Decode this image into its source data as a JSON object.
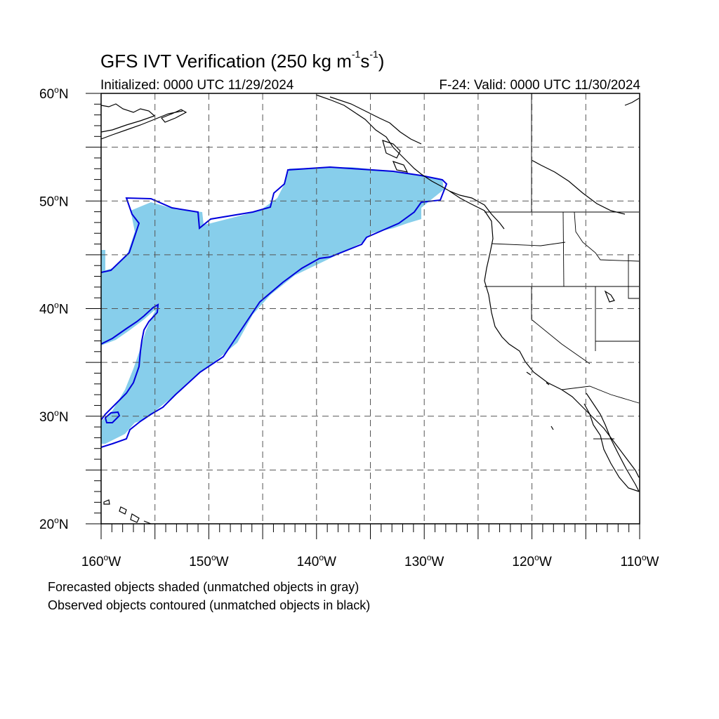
{
  "title": {
    "main": "GFS IVT Verification (250 kg m",
    "exp1": "-1",
    "mid": "s",
    "exp2": "-1",
    "close": ")"
  },
  "subtitle_left": "Initialized: 0000 UTC 11/29/2024",
  "subtitle_right": "F-24: Valid: 0000 UTC 11/30/2024",
  "lat_labels": [
    {
      "num": "60",
      "hemi": "N",
      "lat": 60
    },
    {
      "num": "50",
      "hemi": "N",
      "lat": 50
    },
    {
      "num": "40",
      "hemi": "N",
      "lat": 40
    },
    {
      "num": "30",
      "hemi": "N",
      "lat": 30
    },
    {
      "num": "20",
      "hemi": "N",
      "lat": 20
    }
  ],
  "lon_labels": [
    {
      "num": "160",
      "hemi": "W",
      "lon": -160
    },
    {
      "num": "150",
      "hemi": "W",
      "lon": -150
    },
    {
      "num": "140",
      "hemi": "W",
      "lon": -140
    },
    {
      "num": "130",
      "hemi": "W",
      "lon": -130
    },
    {
      "num": "120",
      "hemi": "W",
      "lon": -120
    },
    {
      "num": "110",
      "hemi": "W",
      "lon": -110
    }
  ],
  "footer": {
    "line1": "Forecasted objects shaded (unmatched objects in gray)",
    "line2": "Observed objects contoured (unmatched objects in black)"
  },
  "map": {
    "extent": {
      "lon": [
        -160,
        -110
      ],
      "lat": [
        20,
        60
      ]
    },
    "gridline_spacing_deg": 5,
    "colors": {
      "forecast_fill": "#87ceeb",
      "observed_contour": "#0000dd",
      "coastline": "#000000",
      "grid": "#555555"
    }
  }
}
